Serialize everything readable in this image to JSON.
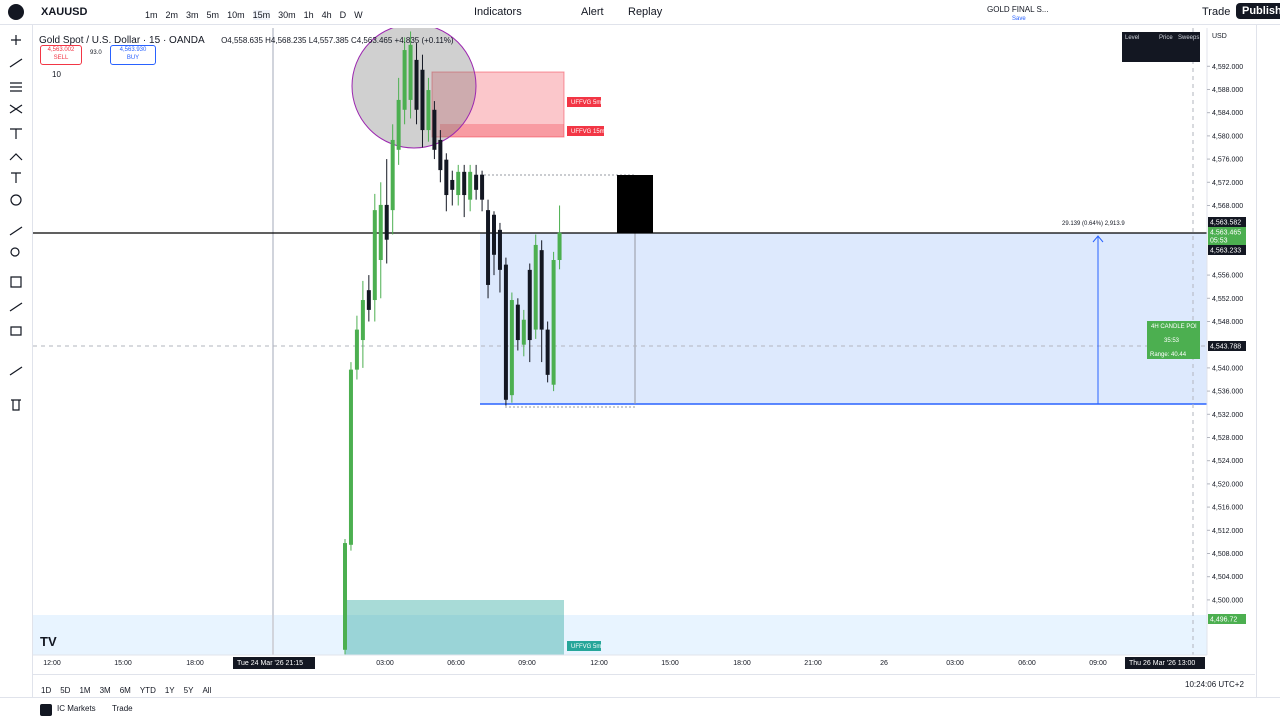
{
  "top_bar": {
    "symbol": "XAUUSD",
    "timeframes": [
      "1m",
      "2m",
      "3m",
      "5m",
      "10m",
      "15m",
      "30m",
      "1h",
      "4h",
      "D",
      "W"
    ],
    "indicators": "Indicators",
    "alert": "Alert",
    "replay": "Replay",
    "layout_name": "GOLD FINAL S...",
    "layout_status": "Save",
    "trade": "Trade",
    "publish": "Publish"
  },
  "legend": {
    "title": "Gold Spot / U.S. Dollar · 15 · OANDA",
    "ohlc": "O4,558.635 H4,568.235 L4,557.385 C4,563.465 +4.835 (+0.11%)",
    "sell_price": "4,563.002",
    "sell": "SELL",
    "spread": "93.0",
    "buy_price": "4,563.930",
    "buy": "BUY",
    "volume": "10"
  },
  "chart_data": {
    "type": "candlestick",
    "currency": "USD",
    "open": [
      4491.4,
      4509.5,
      4539.7,
      4544.8,
      4553.4,
      4551.7,
      4558.6,
      4568.1,
      4567.2,
      4577.6,
      4584.5,
      4586.2,
      4593.1,
      4591.4,
      4581.0,
      4584.5,
      4579.3,
      4575.9,
      4572.4,
      4569.8,
      4573.8,
      4569.0,
      4573.3,
      4573.3,
      4567.2,
      4566.4,
      4563.8,
      4557.8,
      4535.3,
      4550.9,
      4544.0,
      4556.9,
      4546.6,
      4560.3,
      4546.6,
      4537.1,
      4558.6
    ],
    "high": [
      4510.5,
      4541.0,
      4549.0,
      4555.0,
      4556.0,
      4570.0,
      4572.0,
      4576.0,
      4582.0,
      4590.0,
      4597.0,
      4598.0,
      4596.0,
      4594.0,
      4590.0,
      4586.0,
      4581.0,
      4577.0,
      4574.0,
      4575.0,
      4575.0,
      4575.0,
      4575.0,
      4574.0,
      4569.0,
      4567.0,
      4565.0,
      4559.0,
      4553.0,
      4552.0,
      4550.0,
      4558.0,
      4563.0,
      4562.0,
      4548.0,
      4560.0,
      4568.0
    ],
    "low": [
      4490.6,
      4508.5,
      4538.0,
      4540.0,
      4548.0,
      4548.0,
      4552.0,
      4558.0,
      4563.0,
      4575.0,
      4582.0,
      4583.0,
      4582.0,
      4578.0,
      4579.0,
      4576.0,
      4572.0,
      4567.0,
      4568.0,
      4568.0,
      4566.0,
      4567.0,
      4569.0,
      4567.0,
      4552.0,
      4556.0,
      4553.0,
      4533.5,
      4534.0,
      4543.0,
      4542.0,
      4541.0,
      4545.0,
      4541.0,
      4537.5,
      4536.0,
      4557.0
    ],
    "close": [
      4509.8,
      4539.7,
      4546.6,
      4551.7,
      4550.0,
      4567.2,
      4568.1,
      4562.1,
      4579.3,
      4586.2,
      4594.8,
      4595.7,
      4584.5,
      4581.0,
      4587.9,
      4577.6,
      4574.1,
      4569.8,
      4570.7,
      4573.8,
      4569.8,
      4573.8,
      4570.7,
      4569.0,
      4554.3,
      4559.5,
      4556.9,
      4534.5,
      4551.7,
      4544.8,
      4548.3,
      4544.8,
      4561.2,
      4546.6,
      4538.8,
      4558.6,
      4563.3
    ],
    "up_color": "#4caf50",
    "down_color": "#131722",
    "ylim": [
      4490.5,
      4598.6
    ],
    "yticks": [
      {
        "value": 4592,
        "label": "4,592.000"
      },
      {
        "value": 4588,
        "label": "4,588.000"
      },
      {
        "value": 4584,
        "label": "4,584.000"
      },
      {
        "value": 4580,
        "label": "4,580.000"
      },
      {
        "value": 4576,
        "label": "4,576.000"
      },
      {
        "value": 4572,
        "label": "4,572.000"
      },
      {
        "value": 4568,
        "label": "4,568.000"
      },
      {
        "value": 4556,
        "label": "4,556.000"
      },
      {
        "value": 4552,
        "label": "4,552.000"
      },
      {
        "value": 4548,
        "label": "4,548.000"
      },
      {
        "value": 4540,
        "label": "4,540.000"
      },
      {
        "value": 4536,
        "label": "4,536.000"
      },
      {
        "value": 4532,
        "label": "4,532.000"
      },
      {
        "value": 4528,
        "label": "4,528.000"
      },
      {
        "value": 4524,
        "label": "4,524.000"
      },
      {
        "value": 4520,
        "label": "4,520.000"
      },
      {
        "value": 4516,
        "label": "4,516.000"
      },
      {
        "value": 4512,
        "label": "4,512.000"
      },
      {
        "value": 4508,
        "label": "4,508.000"
      },
      {
        "value": 4504,
        "label": "4,504.000"
      },
      {
        "value": 4500,
        "label": "4,500.000"
      }
    ],
    "time_labels": [
      "12:00",
      "15:00",
      "18:00",
      "03:00",
      "06:00",
      "09:00",
      "12:00",
      "15:00",
      "18:00",
      "21:00",
      "26",
      "03:00",
      "06:00",
      "09:00"
    ],
    "crosshair_time_left": "Tue 24 Mar '26  21:15",
    "crosshair_time_right": "Thu 26 Mar '26  13:00",
    "price_labels": [
      "4,563.582",
      "4,563.465",
      "05:53",
      "4,563.233",
      "4,543.788",
      "4,496.72"
    ],
    "annotations": {
      "fvg_5m": "UFFVG 5m",
      "fvg_15m": "UFFVG 15m",
      "fvg_bottom": "UFFVG 5m",
      "measure": "29.139 (0.64%) 2,913.9",
      "poi_title": "4H CANDLE POI",
      "poi_timer": "35:53",
      "poi_range": "Range: 40.44"
    }
  },
  "bottom_bar": {
    "ranges": [
      "1D",
      "5D",
      "1M",
      "3M",
      "6M",
      "YTD",
      "1Y",
      "5Y",
      "All"
    ],
    "clock": "10:24:06 UTC+2",
    "broker": "IC Markets",
    "trade": "Trade"
  },
  "info_table": {
    "headers": [
      "Level",
      "Price",
      "Sweeps"
    ]
  }
}
